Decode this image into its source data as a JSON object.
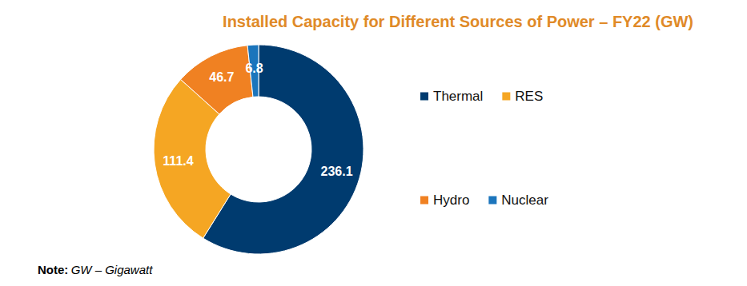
{
  "chart_data": {
    "type": "donut",
    "title": "Installed Capacity for Different Sources of Power – FY22 (GW)",
    "categories": [
      "Thermal",
      "RES",
      "Hydro",
      "Nuclear"
    ],
    "values": [
      236.1,
      111.4,
      46.7,
      6.8
    ],
    "colors": [
      "#003b6f",
      "#f5a623",
      "#f08122",
      "#1b75bc"
    ],
    "data_labels": true,
    "legend": "right",
    "note": {
      "label": "Note:",
      "text": "GW – Gigawatt"
    }
  }
}
